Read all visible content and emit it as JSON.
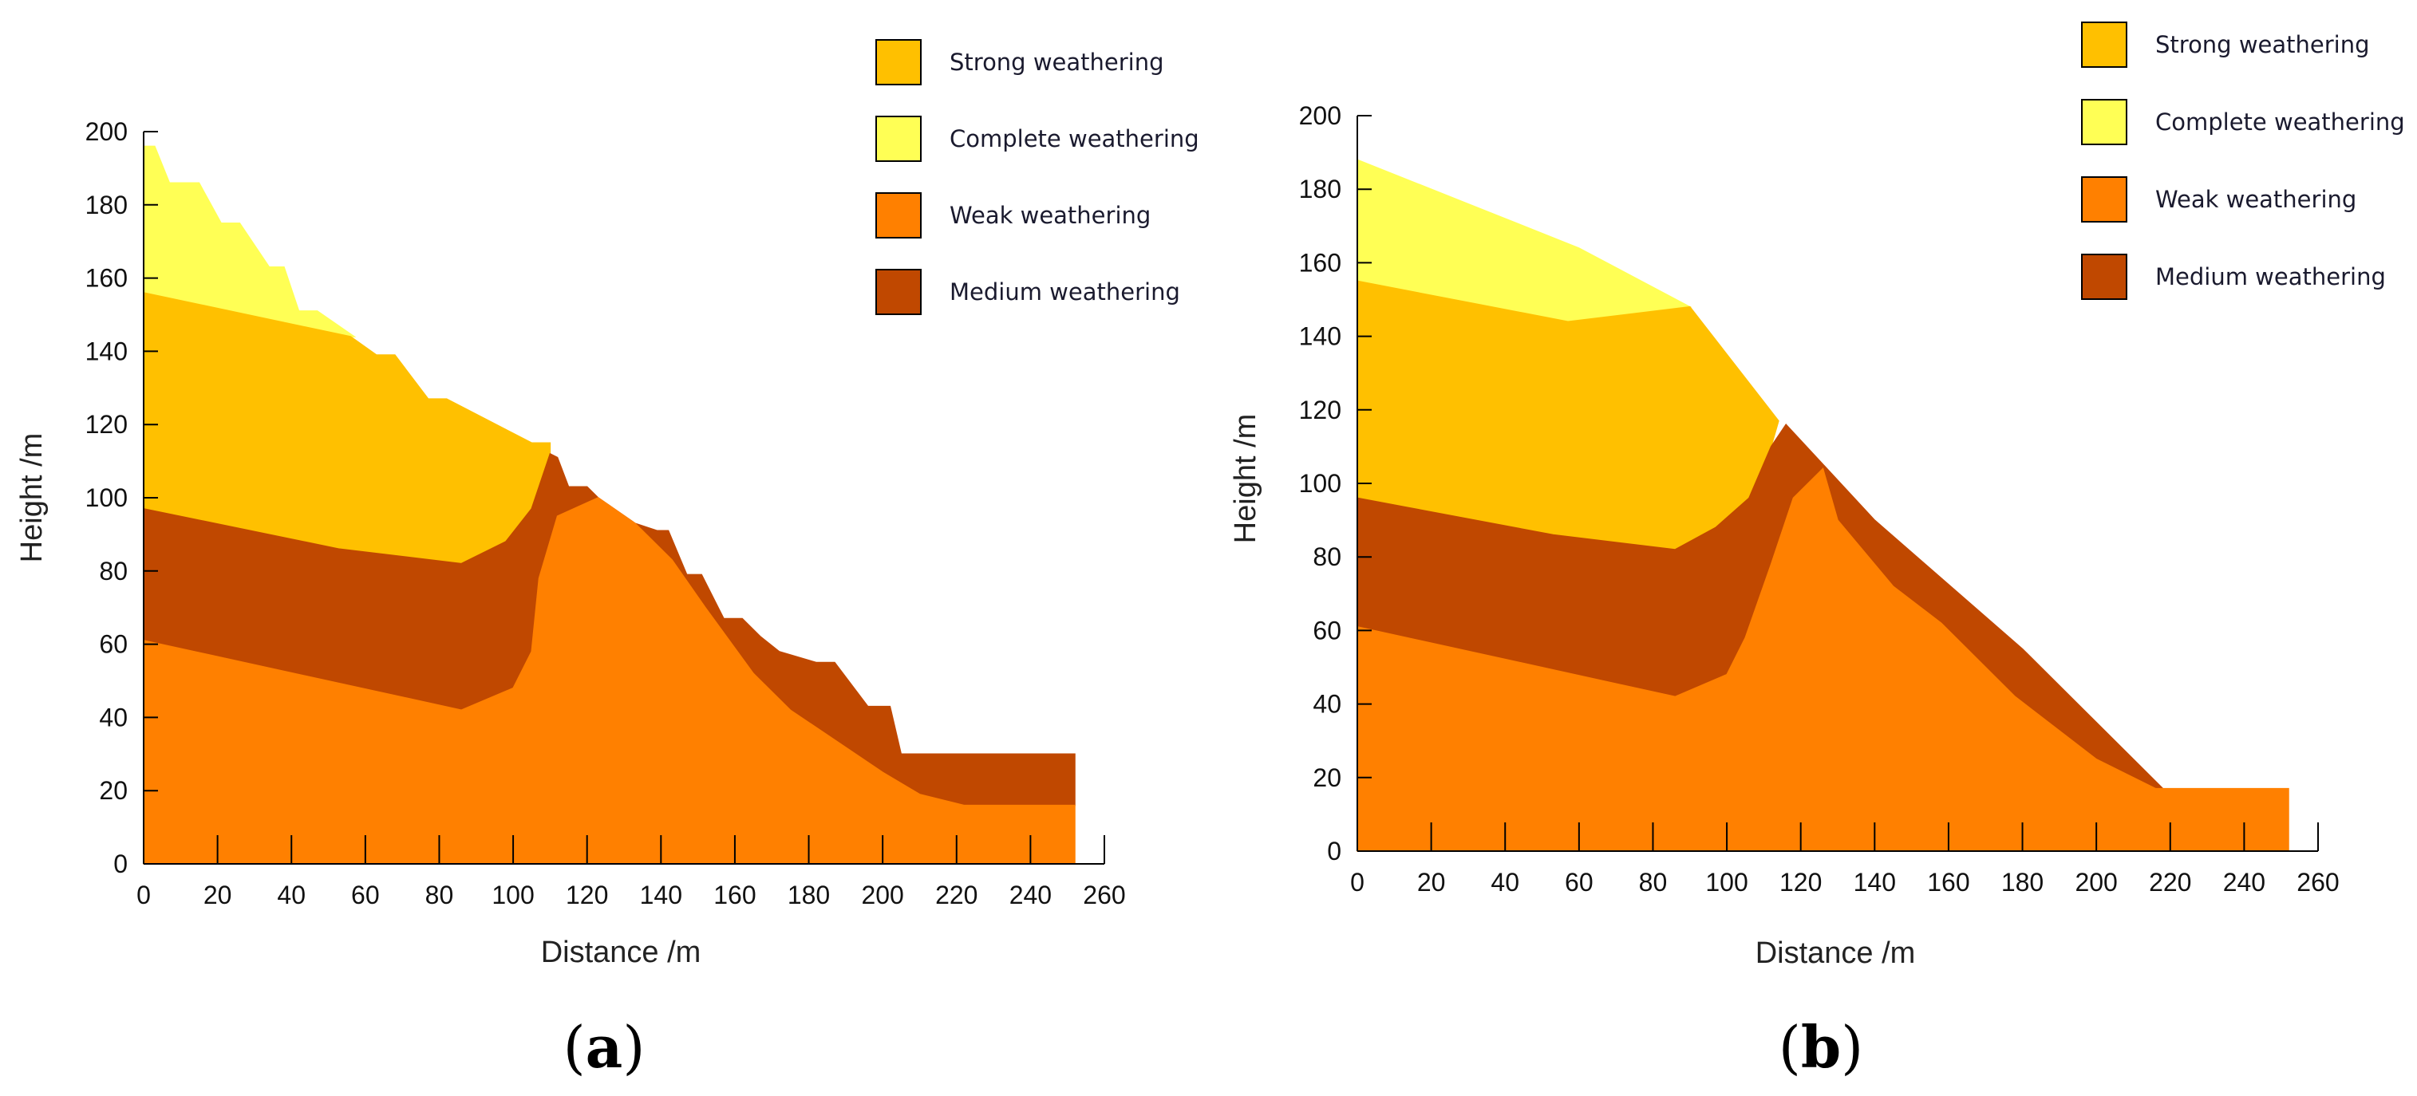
{
  "legend": [
    {
      "key": "strong",
      "label": "Strong weathering",
      "color": "#FFC000"
    },
    {
      "key": "complete",
      "label": "Complete weathering",
      "color": "#FFFF55"
    },
    {
      "key": "weak",
      "label": "Weak weathering",
      "color": "#FF8000"
    },
    {
      "key": "medium",
      "label": "Medium weathering",
      "color": "#C04800"
    }
  ],
  "chart_data": [
    {
      "type": "area",
      "panel": "a",
      "caption_letter": "a",
      "xlabel": "Distance /m",
      "ylabel": "Height /m",
      "xlim": [
        0,
        260
      ],
      "ylim": [
        0,
        200
      ],
      "xticks": [
        0,
        20,
        40,
        60,
        80,
        100,
        120,
        140,
        160,
        180,
        200,
        220,
        240,
        260
      ],
      "yticks": [
        0,
        20,
        40,
        60,
        80,
        100,
        120,
        140,
        160,
        180,
        200
      ],
      "layers": [
        {
          "key": "complete",
          "name": "Complete weathering",
          "points": [
            [
              0,
              196
            ],
            [
              3,
              196
            ],
            [
              7,
              186
            ],
            [
              15,
              186
            ],
            [
              21,
              175
            ],
            [
              26,
              175
            ],
            [
              34,
              163
            ],
            [
              38,
              163
            ],
            [
              42,
              151
            ],
            [
              47,
              151
            ],
            [
              57,
              144
            ],
            [
              56,
              144
            ],
            [
              0,
              156
            ]
          ]
        },
        {
          "key": "strong",
          "name": "Strong weathering",
          "points": [
            [
              0,
              156
            ],
            [
              56,
              144
            ],
            [
              63,
              139
            ],
            [
              68,
              139
            ],
            [
              77,
              127
            ],
            [
              82,
              127
            ],
            [
              105,
              115
            ],
            [
              110,
              115
            ],
            [
              110,
              112
            ],
            [
              105,
              97
            ],
            [
              98,
              88
            ],
            [
              86,
              82
            ],
            [
              53,
              86
            ],
            [
              0,
              97
            ]
          ]
        },
        {
          "key": "medium",
          "name": "Medium weathering",
          "points": [
            [
              0,
              97
            ],
            [
              53,
              86
            ],
            [
              86,
              82
            ],
            [
              98,
              88
            ],
            [
              105,
              97
            ],
            [
              110,
              112
            ],
            [
              112,
              111
            ],
            [
              115,
              103
            ],
            [
              120,
              103
            ],
            [
              123,
              100
            ],
            [
              127,
              95
            ],
            [
              139,
              91
            ],
            [
              142,
              91
            ],
            [
              147,
              79
            ],
            [
              151,
              79
            ],
            [
              157,
              67
            ],
            [
              162,
              67
            ],
            [
              167,
              62
            ],
            [
              172,
              58
            ],
            [
              182,
              55
            ],
            [
              187,
              55
            ],
            [
              196,
              43
            ],
            [
              202,
              43
            ],
            [
              205,
              30
            ],
            [
              252,
              30
            ],
            [
              252,
              16
            ],
            [
              222,
              16
            ],
            [
              210,
              19
            ],
            [
              200,
              25
            ],
            [
              175,
              42
            ],
            [
              165,
              52
            ],
            [
              152,
              70
            ],
            [
              143,
              83
            ],
            [
              133,
              93
            ],
            [
              123,
              100
            ],
            [
              112,
              95
            ],
            [
              107,
              78
            ],
            [
              105,
              58
            ],
            [
              100,
              48
            ],
            [
              86,
              42
            ],
            [
              0,
              61
            ]
          ]
        },
        {
          "key": "weak",
          "name": "Weak weathering",
          "points": [
            [
              0,
              61
            ],
            [
              86,
              42
            ],
            [
              100,
              48
            ],
            [
              105,
              58
            ],
            [
              107,
              78
            ],
            [
              112,
              95
            ],
            [
              123,
              100
            ],
            [
              133,
              93
            ],
            [
              143,
              83
            ],
            [
              152,
              70
            ],
            [
              165,
              52
            ],
            [
              175,
              42
            ],
            [
              200,
              25
            ],
            [
              210,
              19
            ],
            [
              222,
              16
            ],
            [
              252,
              16
            ],
            [
              252,
              0
            ],
            [
              0,
              0
            ]
          ]
        }
      ]
    },
    {
      "type": "area",
      "panel": "b",
      "caption_letter": "b",
      "xlabel": "Distance /m",
      "ylabel": "Height /m",
      "xlim": [
        0,
        260
      ],
      "ylim": [
        0,
        200
      ],
      "xticks": [
        0,
        20,
        40,
        60,
        80,
        100,
        120,
        140,
        160,
        180,
        200,
        220,
        240,
        260
      ],
      "yticks": [
        0,
        20,
        40,
        60,
        80,
        100,
        120,
        140,
        160,
        180,
        200
      ],
      "layers": [
        {
          "key": "complete",
          "name": "Complete weathering",
          "points": [
            [
              0,
              188
            ],
            [
              40,
              172
            ],
            [
              60,
              164
            ],
            [
              90,
              148
            ],
            [
              57,
              144
            ],
            [
              0,
              155
            ]
          ]
        },
        {
          "key": "strong",
          "name": "Strong weathering",
          "points": [
            [
              0,
              155
            ],
            [
              57,
              144
            ],
            [
              90,
              148
            ],
            [
              114,
              117
            ],
            [
              112,
              110
            ],
            [
              106,
              96
            ],
            [
              97,
              88
            ],
            [
              86,
              82
            ],
            [
              53,
              86
            ],
            [
              0,
              96
            ]
          ]
        },
        {
          "key": "medium",
          "name": "Medium weathering",
          "points": [
            [
              0,
              96
            ],
            [
              53,
              86
            ],
            [
              86,
              82
            ],
            [
              97,
              88
            ],
            [
              106,
              96
            ],
            [
              112,
              110
            ],
            [
              116,
              116
            ],
            [
              140,
              90
            ],
            [
              180,
              55
            ],
            [
              218,
              17
            ],
            [
              216,
              17
            ],
            [
              200,
              25
            ],
            [
              178,
              42
            ],
            [
              158,
              62
            ],
            [
              145,
              72
            ],
            [
              130,
              90
            ],
            [
              126,
              104
            ],
            [
              118,
              96
            ],
            [
              112,
              78
            ],
            [
              105,
              58
            ],
            [
              100,
              48
            ],
            [
              86,
              42
            ],
            [
              0,
              61
            ]
          ]
        },
        {
          "key": "weak",
          "name": "Weak weathering",
          "points": [
            [
              0,
              61
            ],
            [
              86,
              42
            ],
            [
              100,
              48
            ],
            [
              105,
              58
            ],
            [
              112,
              78
            ],
            [
              118,
              96
            ],
            [
              126,
              104
            ],
            [
              130,
              90
            ],
            [
              145,
              72
            ],
            [
              158,
              62
            ],
            [
              178,
              42
            ],
            [
              200,
              25
            ],
            [
              216,
              17
            ],
            [
              252,
              17
            ],
            [
              252,
              0
            ],
            [
              0,
              0
            ]
          ]
        }
      ]
    }
  ]
}
